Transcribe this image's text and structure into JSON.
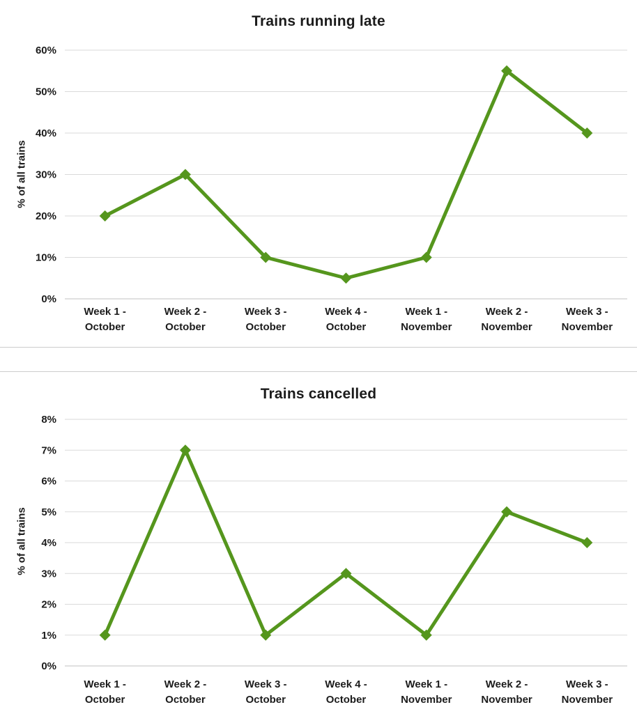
{
  "page": {
    "background": "#ffffff",
    "divider_color": "#cccccc"
  },
  "chart_data": [
    {
      "type": "line",
      "title": "Trains running late",
      "xlabel": "",
      "ylabel": "% of all trains",
      "categories": [
        "Week 1 - October",
        "Week 2 - October",
        "Week 3 - October",
        "Week 4 - October",
        "Week 1 - November",
        "Week 2 - November",
        "Week 3 - November"
      ],
      "values": [
        20,
        30,
        10,
        5,
        10,
        55,
        40
      ],
      "ylim": [
        0,
        60
      ],
      "y_tick_step": 10,
      "y_tick_labels": [
        "0%",
        "10%",
        "20%",
        "30%",
        "40%",
        "50%",
        "60%"
      ],
      "grid": true,
      "legend": "none",
      "line_color": "#55961d",
      "marker": "diamond",
      "marker_color": "#55961d",
      "gridline_color": "#dadada",
      "axis_line_color": "#c2c2c2"
    },
    {
      "type": "line",
      "title": "Trains cancelled",
      "xlabel": "",
      "ylabel": "% of all trains",
      "categories": [
        "Week 1 - October",
        "Week 2 - October",
        "Week 3 - October",
        "Week 4 - October",
        "Week 1 - November",
        "Week 2 - November",
        "Week 3 - November"
      ],
      "values": [
        1,
        7,
        1,
        3,
        1,
        5,
        4
      ],
      "ylim": [
        0,
        8
      ],
      "y_tick_step": 1,
      "y_tick_labels": [
        "0%",
        "1%",
        "2%",
        "3%",
        "4%",
        "5%",
        "6%",
        "7%",
        "8%"
      ],
      "grid": true,
      "legend": "none",
      "line_color": "#55961d",
      "marker": "diamond",
      "marker_color": "#55961d",
      "gridline_color": "#dadada",
      "axis_line_color": "#c2c2c2"
    }
  ]
}
